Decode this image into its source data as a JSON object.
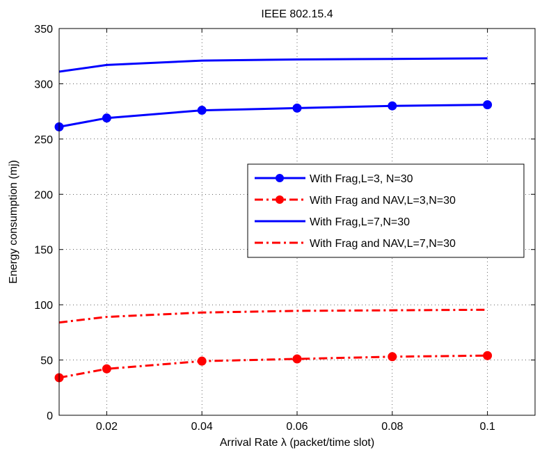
{
  "chart_data": {
    "type": "line",
    "title": "IEEE 802.15.4",
    "xlabel": "Arrival Rate λ (packet/time slot)",
    "ylabel": "Energy consumption (mj)",
    "xlim": [
      0.01,
      0.11
    ],
    "ylim": [
      0,
      350
    ],
    "xticks": [
      0.02,
      0.04,
      0.06,
      0.08,
      0.1
    ],
    "xtick_labels": [
      "0.02",
      "0.04",
      "0.06",
      "0.08",
      "0.1"
    ],
    "yticks": [
      0,
      50,
      100,
      150,
      200,
      250,
      300,
      350
    ],
    "ytick_labels": [
      "0",
      "50",
      "100",
      "150",
      "200",
      "250",
      "300",
      "350"
    ],
    "grid": true,
    "legend_position": "center-right",
    "x": [
      0.01,
      0.02,
      0.04,
      0.06,
      0.08,
      0.1
    ],
    "series": [
      {
        "name": "With Frag,L=3, N=30",
        "values": [
          261,
          269,
          276,
          278,
          280,
          281
        ],
        "color": "#0000ff",
        "line_style": "solid",
        "marker": "circle"
      },
      {
        "name": "With Frag and NAV,L=3,N=30",
        "values": [
          34,
          42,
          49,
          51,
          53,
          54
        ],
        "color": "#ff0000",
        "line_style": "dashdot",
        "marker": "circle"
      },
      {
        "name": "With Frag,L=7,N=30",
        "values": [
          311,
          317,
          321,
          322,
          322.5,
          323
        ],
        "color": "#0000ff",
        "line_style": "solid",
        "marker": "none"
      },
      {
        "name": "With Frag and NAV,L=7,N=30",
        "values": [
          84,
          89,
          93,
          94.5,
          95,
          95.5
        ],
        "color": "#ff0000",
        "line_style": "dashdot",
        "marker": "none"
      }
    ]
  }
}
